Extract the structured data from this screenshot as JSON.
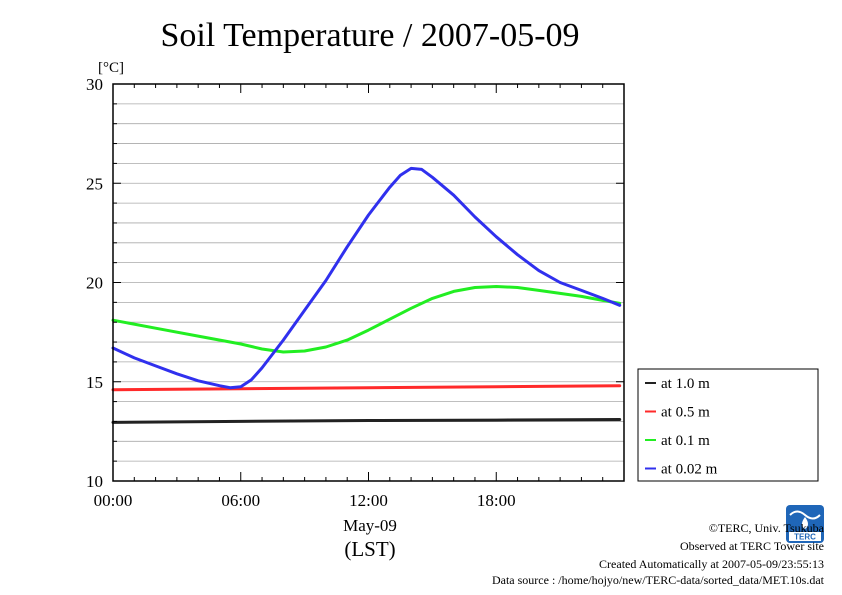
{
  "chart_data": {
    "type": "line",
    "title": "Soil Temperature / 2007-05-09",
    "ylabel": "[°C]",
    "xlabel": "May-09",
    "xlabel2": "(LST)",
    "ylim": [
      10,
      30
    ],
    "xlim": [
      0,
      24
    ],
    "yticks": [
      "10",
      "15",
      "20",
      "25",
      "30"
    ],
    "xticks": [
      "00:00",
      "06:00",
      "12:00",
      "18:00"
    ],
    "legend_position": "right",
    "series": [
      {
        "name": "at 1.0 m",
        "color": "#222222",
        "x": [
          0,
          6,
          12,
          18,
          23.8
        ],
        "y": [
          12.95,
          13.0,
          13.05,
          13.07,
          13.1
        ]
      },
      {
        "name": "at 0.5 m",
        "color": "#ff2a2a",
        "x": [
          0,
          6,
          12,
          18,
          23.8
        ],
        "y": [
          14.6,
          14.65,
          14.7,
          14.75,
          14.8
        ]
      },
      {
        "name": "at 0.1 m",
        "color": "#22ee22",
        "x": [
          0,
          2,
          4,
          6,
          7,
          8,
          9,
          10,
          11,
          12,
          13,
          14,
          15,
          16,
          17,
          18,
          19,
          20,
          21,
          22,
          23,
          23.8
        ],
        "y": [
          18.1,
          17.7,
          17.3,
          16.9,
          16.65,
          16.5,
          16.55,
          16.75,
          17.1,
          17.6,
          18.15,
          18.7,
          19.2,
          19.55,
          19.75,
          19.8,
          19.75,
          19.6,
          19.45,
          19.3,
          19.1,
          18.95
        ]
      },
      {
        "name": "at 0.02 m",
        "color": "#3030ee",
        "x": [
          0,
          1,
          2,
          3,
          4,
          5,
          5.5,
          6,
          6.5,
          7,
          8,
          9,
          10,
          11,
          12,
          12.5,
          13,
          13.5,
          14,
          14.5,
          15,
          16,
          17,
          18,
          19,
          20,
          21,
          22,
          23,
          23.8
        ],
        "y": [
          16.7,
          16.2,
          15.8,
          15.4,
          15.05,
          14.8,
          14.7,
          14.75,
          15.1,
          15.7,
          17.1,
          18.6,
          20.1,
          21.8,
          23.4,
          24.1,
          24.8,
          25.4,
          25.75,
          25.7,
          25.3,
          24.4,
          23.3,
          22.3,
          21.4,
          20.6,
          20.0,
          19.6,
          19.2,
          18.85
        ]
      }
    ]
  },
  "credits": {
    "copyright": "©TERC, Univ. Tsukuba",
    "observed": "Observed at TERC Tower site",
    "created": "Created Automatically at 2007-05-09/23:55:13",
    "source": "Data source : /home/hojyo/new/TERC-data/sorted_data/MET.10s.dat"
  },
  "logo": {
    "text": "TERC",
    "color": "#1f66b8"
  }
}
